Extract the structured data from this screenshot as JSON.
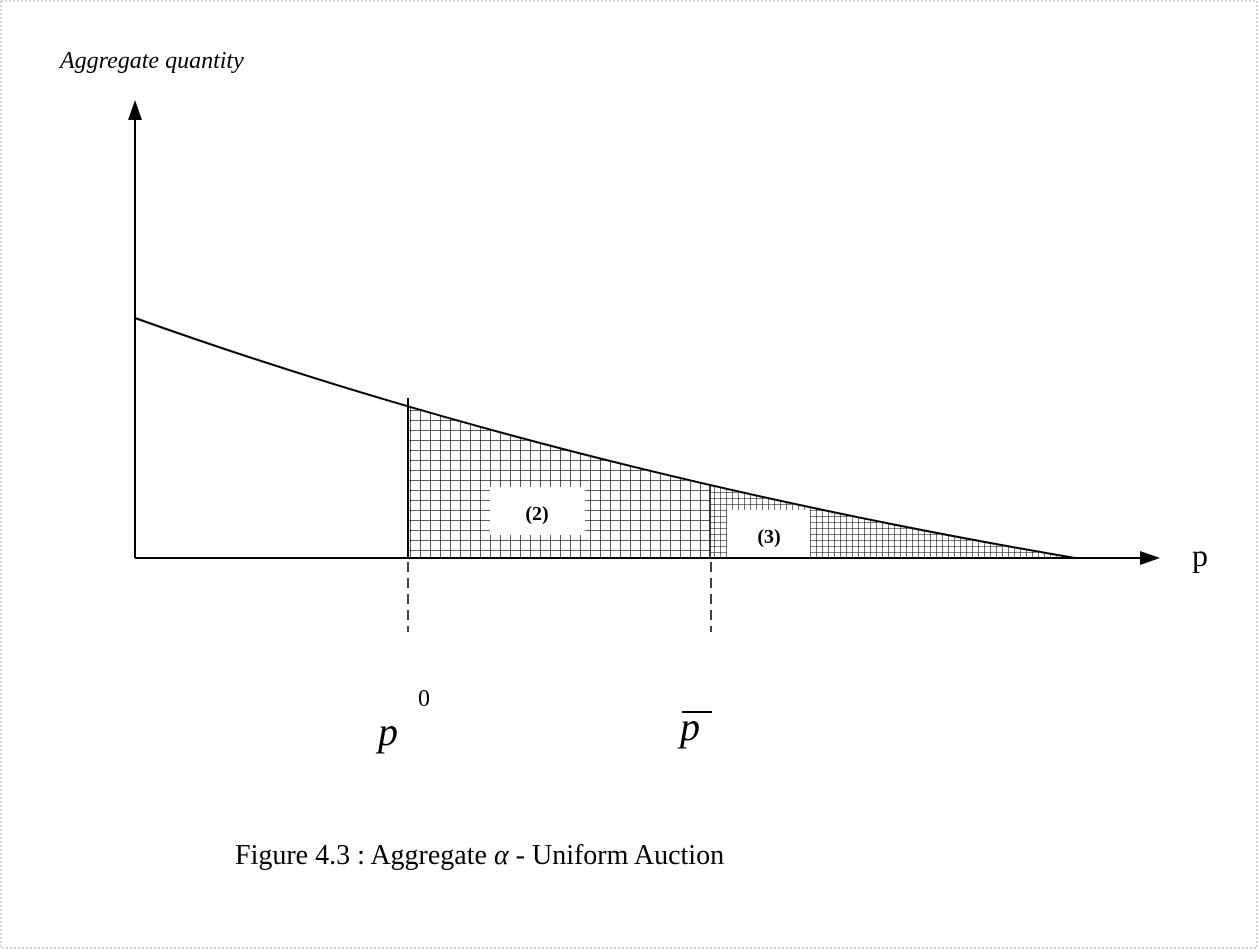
{
  "axes": {
    "y_label": "Aggregate quantity",
    "x_label": "p"
  },
  "regions": [
    {
      "label": "(2)"
    },
    {
      "label": "(3)"
    }
  ],
  "markers": [
    {
      "symbol": "p",
      "superscript": "0"
    },
    {
      "symbol": "p"
    }
  ],
  "caption": {
    "text": "Figure 4.3 : Aggregate",
    "symbol": "α",
    "rest": "- Uniform Auction"
  }
}
